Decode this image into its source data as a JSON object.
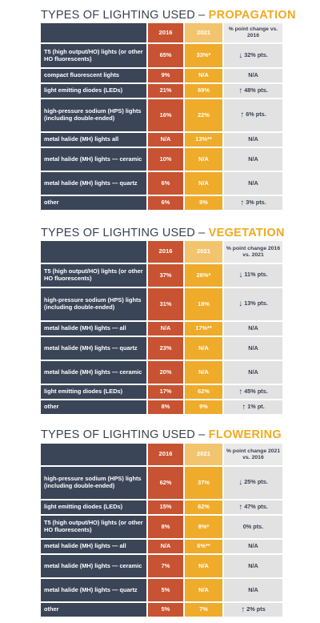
{
  "sections": [
    {
      "title_prefix": "TYPES OF LIGHTING USED – ",
      "title_highlight": "PROPAGATION",
      "header": {
        "c2016": "2016",
        "c2021": "2021",
        "change": "% point change vs. 2016"
      },
      "rows": [
        {
          "label": "T5 (high output/HO) lights (or other HO fluorescents)",
          "v2016": "65%",
          "v2021": "33%*",
          "change": "32% pts.",
          "dir": "down"
        },
        {
          "label": "compact fluorescent lights",
          "v2016": "9%",
          "v2021": "N/A",
          "change": "N/A",
          "dir": ""
        },
        {
          "label": "light emitting diodes (LEDs)",
          "v2016": "21%",
          "v2021": "69%",
          "change": "48% pts.",
          "dir": "up"
        },
        {
          "label": "high-pressure sodium (HPS) lights (including double-ended)",
          "v2016": "16%",
          "v2021": "22%",
          "change": "6% pts.",
          "dir": "up"
        },
        {
          "label": "metal halide (MH) lights all",
          "v2016": "N/A",
          "v2021": "13%**",
          "change": "N/A",
          "dir": ""
        },
        {
          "label": "metal halide (MH) lights — ceramic",
          "v2016": "10%",
          "v2021": "N/A",
          "change": "N/A",
          "dir": ""
        },
        {
          "label": "metal halide (MH) lights — quartz",
          "v2016": "6%",
          "v2021": "N/A",
          "change": "N/A",
          "dir": ""
        },
        {
          "label": "other",
          "v2016": "6%",
          "v2021": "9%",
          "change": "3% pts.",
          "dir": "up"
        }
      ]
    },
    {
      "title_prefix": "TYPES OF LIGHTING USED – ",
      "title_highlight": "VEGETATION",
      "header": {
        "c2016": "2016",
        "c2021": "2021",
        "change": "% point change 2016 vs. 2021"
      },
      "rows": [
        {
          "label": "T5 (high output/HO) lights (or other HO fluorescents)",
          "v2016": "37%",
          "v2021": "26%*",
          "change": "11% pts.",
          "dir": "down"
        },
        {
          "label": "high-pressure sodium (HPS) lights (including double-ended)",
          "v2016": "31%",
          "v2021": "18%",
          "change": "13% pts.",
          "dir": "down"
        },
        {
          "label": "metal halide (MH) lights — all",
          "v2016": "N/A",
          "v2021": "17%**",
          "change": "N/A",
          "dir": ""
        },
        {
          "label": "metal halide (MH) lights — quartz",
          "v2016": "23%",
          "v2021": "N/A",
          "change": "N/A",
          "dir": ""
        },
        {
          "label": "metal halide (MH) lights — ceramic",
          "v2016": "20%",
          "v2021": "N/A",
          "change": "N/A",
          "dir": ""
        },
        {
          "label": "light emitting diodes (LEDs)",
          "v2016": "17%",
          "v2021": "62%",
          "change": "45% pts.",
          "dir": "up"
        },
        {
          "label": "other",
          "v2016": "8%",
          "v2021": "9%",
          "change": "1% pt.",
          "dir": "up"
        }
      ]
    },
    {
      "title_prefix": "TYPES OF LIGHTING USED – ",
      "title_highlight": "FLOWERING",
      "header": {
        "c2016": "2016",
        "c2021": "2021",
        "change": "% point change 2021 vs. 2016"
      },
      "rows": [
        {
          "label": "high-pressure sodium (HPS) lights (including double-ended)",
          "v2016": "62%",
          "v2021": "37%",
          "change": "25% pts.",
          "dir": "down"
        },
        {
          "label": "light emitting diodes (LEDs)",
          "v2016": "15%",
          "v2021": "62%",
          "change": "47% pts.",
          "dir": "up"
        },
        {
          "label": "T5 (high output/HO) lights (or other HO fluorescents)",
          "v2016": "8%",
          "v2021": "8%*",
          "change": "0% pts.",
          "dir": ""
        },
        {
          "label": "metal halide (MH) lights — all",
          "v2016": "N/A",
          "v2021": "6%**",
          "change": "N/A",
          "dir": ""
        },
        {
          "label": "metal halide (MH) lights — ceramic",
          "v2016": "7%",
          "v2021": "N/A",
          "change": "N/A",
          "dir": ""
        },
        {
          "label": "metal halide (MH) lights — quartz",
          "v2016": "5%",
          "v2021": "N/A",
          "change": "N/A",
          "dir": ""
        },
        {
          "label": "other",
          "v2016": "5%",
          "v2021": "7%",
          "change": "2% pts",
          "dir": "up"
        }
      ]
    }
  ]
}
